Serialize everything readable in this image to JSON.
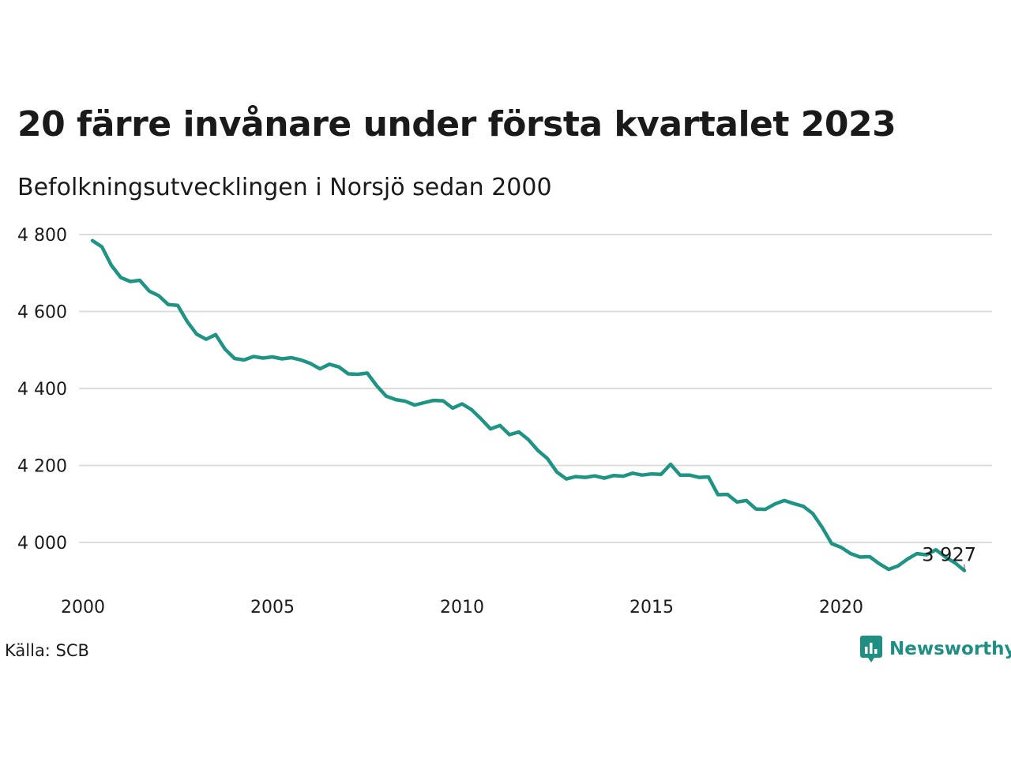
{
  "header": {
    "title": "20 färre invånare under första kvartalet 2023",
    "subtitle": "Befolkningsutvecklingen i Norsjö sedan 2000"
  },
  "footer": {
    "source": "Källa: SCB",
    "brand": "Newsworthy",
    "brand_icon": "newsworthy-logo-icon"
  },
  "colors": {
    "line": "#1f9484",
    "brand": "#1f8f83"
  },
  "chart_data": {
    "type": "line",
    "title": "20 färre invånare under första kvartalet 2023",
    "subtitle": "Befolkningsutvecklingen i Norsjö sedan 2000",
    "xlabel": "",
    "ylabel": "",
    "xlim": [
      2000.0,
      2023.25
    ],
    "ylim": [
      3900,
      4800
    ],
    "x_ticks": [
      2000,
      2005,
      2010,
      2015,
      2020
    ],
    "x_tick_labels": [
      "2000",
      "2005",
      "2010",
      "2015",
      "2020"
    ],
    "y_ticks": [
      4000,
      4200,
      4400,
      4600,
      4800
    ],
    "y_tick_labels": [
      "4 000",
      "4 200",
      "4 400",
      "4 600",
      "4 800"
    ],
    "grid": true,
    "end_label": "3 927",
    "series": [
      {
        "x": [
          2000.25,
          2000.5,
          2000.75,
          2001.0,
          2001.25,
          2001.5,
          2001.75,
          2002.0,
          2002.25,
          2002.5,
          2002.75,
          2003.0,
          2003.25,
          2003.5,
          2003.75,
          2004.0,
          2004.25,
          2004.5,
          2004.75,
          2005.0,
          2005.25,
          2005.5,
          2005.75,
          2006.0,
          2006.25,
          2006.5,
          2006.75,
          2007.0,
          2007.25,
          2007.5,
          2007.75,
          2008.0,
          2008.25,
          2008.5,
          2008.75,
          2009.0,
          2009.25,
          2009.5,
          2009.75,
          2010.0,
          2010.25,
          2010.5,
          2010.75,
          2011.0,
          2011.25,
          2011.5,
          2011.75,
          2012.0,
          2012.25,
          2012.5,
          2012.75,
          2013.0,
          2013.25,
          2013.5,
          2013.75,
          2014.0,
          2014.25,
          2014.5,
          2014.75,
          2015.0,
          2015.25,
          2015.5,
          2015.75,
          2016.0,
          2016.25,
          2016.5,
          2016.75,
          2017.0,
          2017.25,
          2017.5,
          2017.75,
          2018.0,
          2018.25,
          2018.5,
          2018.75,
          2019.0,
          2019.25,
          2019.5,
          2019.75,
          2020.0,
          2020.25,
          2020.5,
          2020.75,
          2021.0,
          2021.25,
          2021.5,
          2021.75,
          2022.0,
          2022.25,
          2022.5,
          2022.75,
          2023.0,
          2023.25
        ],
        "values": [
          4784,
          4768,
          4720,
          4688,
          4678,
          4681,
          4653,
          4641,
          4618,
          4616,
          4574,
          4541,
          4528,
          4540,
          4502,
          4478,
          4474,
          4483,
          4479,
          4482,
          4477,
          4480,
          4474,
          4465,
          4451,
          4463,
          4456,
          4438,
          4437,
          4440,
          4407,
          4380,
          4371,
          4367,
          4357,
          4363,
          4369,
          4368,
          4349,
          4360,
          4345,
          4321,
          4295,
          4304,
          4280,
          4287,
          4267,
          4239,
          4218,
          4183,
          4165,
          4171,
          4169,
          4173,
          4167,
          4174,
          4172,
          4180,
          4175,
          4178,
          4177,
          4203,
          4175,
          4175,
          4169,
          4170,
          4124,
          4125,
          4105,
          4109,
          4087,
          4086,
          4100,
          4109,
          4101,
          4094,
          4075,
          4039,
          3997,
          3987,
          3971,
          3962,
          3963,
          3945,
          3930,
          3939,
          3957,
          3971,
          3968,
          3981,
          3962,
          3947,
          3927
        ]
      }
    ]
  }
}
